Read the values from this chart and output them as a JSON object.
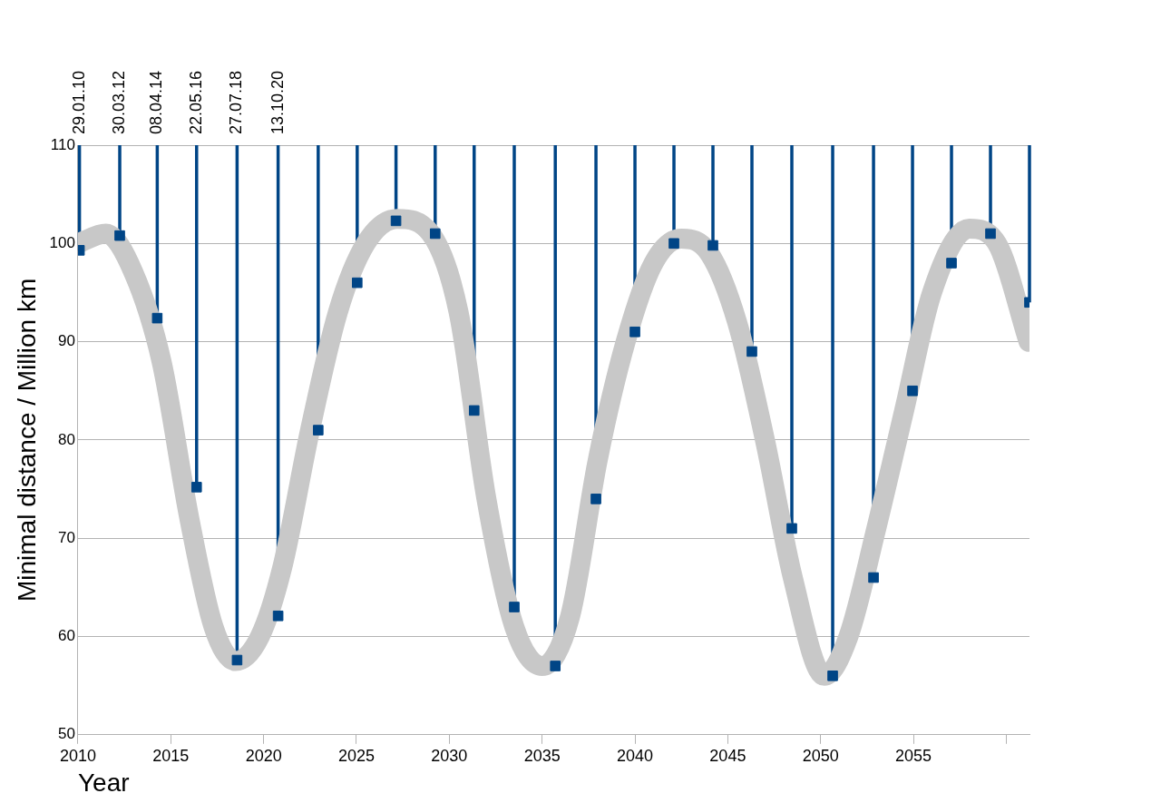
{
  "chart_data": {
    "type": "scatter",
    "xlabel": "Year",
    "ylabel": "Minimal distance / Million km",
    "xlim": [
      2010,
      2061.25
    ],
    "ylim": [
      50,
      110
    ],
    "xticks": [
      2010,
      2015,
      2020,
      2025,
      2030,
      2035,
      2040,
      2045,
      2050,
      2055,
      {
        "value": 2060,
        "label": null
      }
    ],
    "yticks": [
      50,
      60,
      70,
      80,
      90,
      100,
      110
    ],
    "grid": "y",
    "series": [
      {
        "color": "#004586",
        "marker": "square",
        "x": [
          2010.08,
          2012.25,
          2014.27,
          2016.39,
          2018.57,
          2020.78,
          2022.94,
          2025.04,
          2027.13,
          2029.24,
          2031.34,
          2033.5,
          2035.71,
          2037.9,
          2040.0,
          2042.1,
          2044.2,
          2046.3,
          2048.45,
          2050.65,
          2052.85,
          2054.95,
          2057.05,
          2059.15,
          2061.25
        ],
        "values": [
          99.3,
          100.8,
          92.4,
          75.2,
          57.6,
          62.1,
          81,
          96,
          102.3,
          101,
          83,
          63,
          57,
          74,
          91,
          100,
          99.8,
          89,
          71,
          56,
          66,
          85,
          98,
          101,
          94
        ],
        "errors": [
          [
            99.3,
            110
          ],
          [
            100.8,
            110
          ],
          [
            92.4,
            110
          ],
          [
            75.2,
            110
          ],
          [
            57.6,
            110
          ],
          [
            62.1,
            110
          ],
          [
            81,
            110
          ],
          [
            96,
            110
          ],
          [
            102.3,
            110
          ],
          [
            101,
            110
          ],
          [
            83,
            110
          ],
          [
            63,
            110
          ],
          [
            57,
            110
          ],
          [
            74,
            110
          ],
          [
            91,
            110
          ],
          [
            100,
            110
          ],
          [
            99.8,
            110
          ],
          [
            89,
            110
          ],
          [
            71,
            110
          ],
          [
            56,
            110
          ],
          [
            66,
            110
          ],
          [
            85,
            110
          ],
          [
            98,
            110
          ],
          [
            101,
            110
          ],
          [
            94,
            110
          ]
        ]
      },
      {
        "type": "line",
        "color": "#c8c8c8",
        "marker": "none",
        "x": [
          2010,
          2011.5,
          2013,
          2014.5,
          2016,
          2017.3,
          2018.5,
          2019.8,
          2021,
          2022.5,
          2024,
          2025.5,
          2027.2,
          2029,
          2030.5,
          2032,
          2033.5,
          2035,
          2036.5,
          2038,
          2039.5,
          2041,
          2042.5,
          2044,
          2045.5,
          2047,
          2048.5,
          2050.2,
          2051.5,
          2053,
          2054.5,
          2056,
          2058,
          2059.5,
          2061.2
        ],
        "values": [
          100,
          101,
          97,
          88,
          72,
          61,
          57.5,
          60,
          67,
          81,
          93,
          100,
          102.5,
          101,
          93,
          74,
          61,
          57,
          62,
          78,
          90,
          98,
          100.5,
          99,
          92,
          80,
          66,
          56,
          60,
          71,
          83,
          95,
          101.5,
          100,
          90
        ]
      }
    ],
    "annotations": [
      "29.01.10",
      "30.03.12",
      "08.04.14",
      "22.05.16",
      "27.07.18",
      "13.10.20"
    ]
  }
}
